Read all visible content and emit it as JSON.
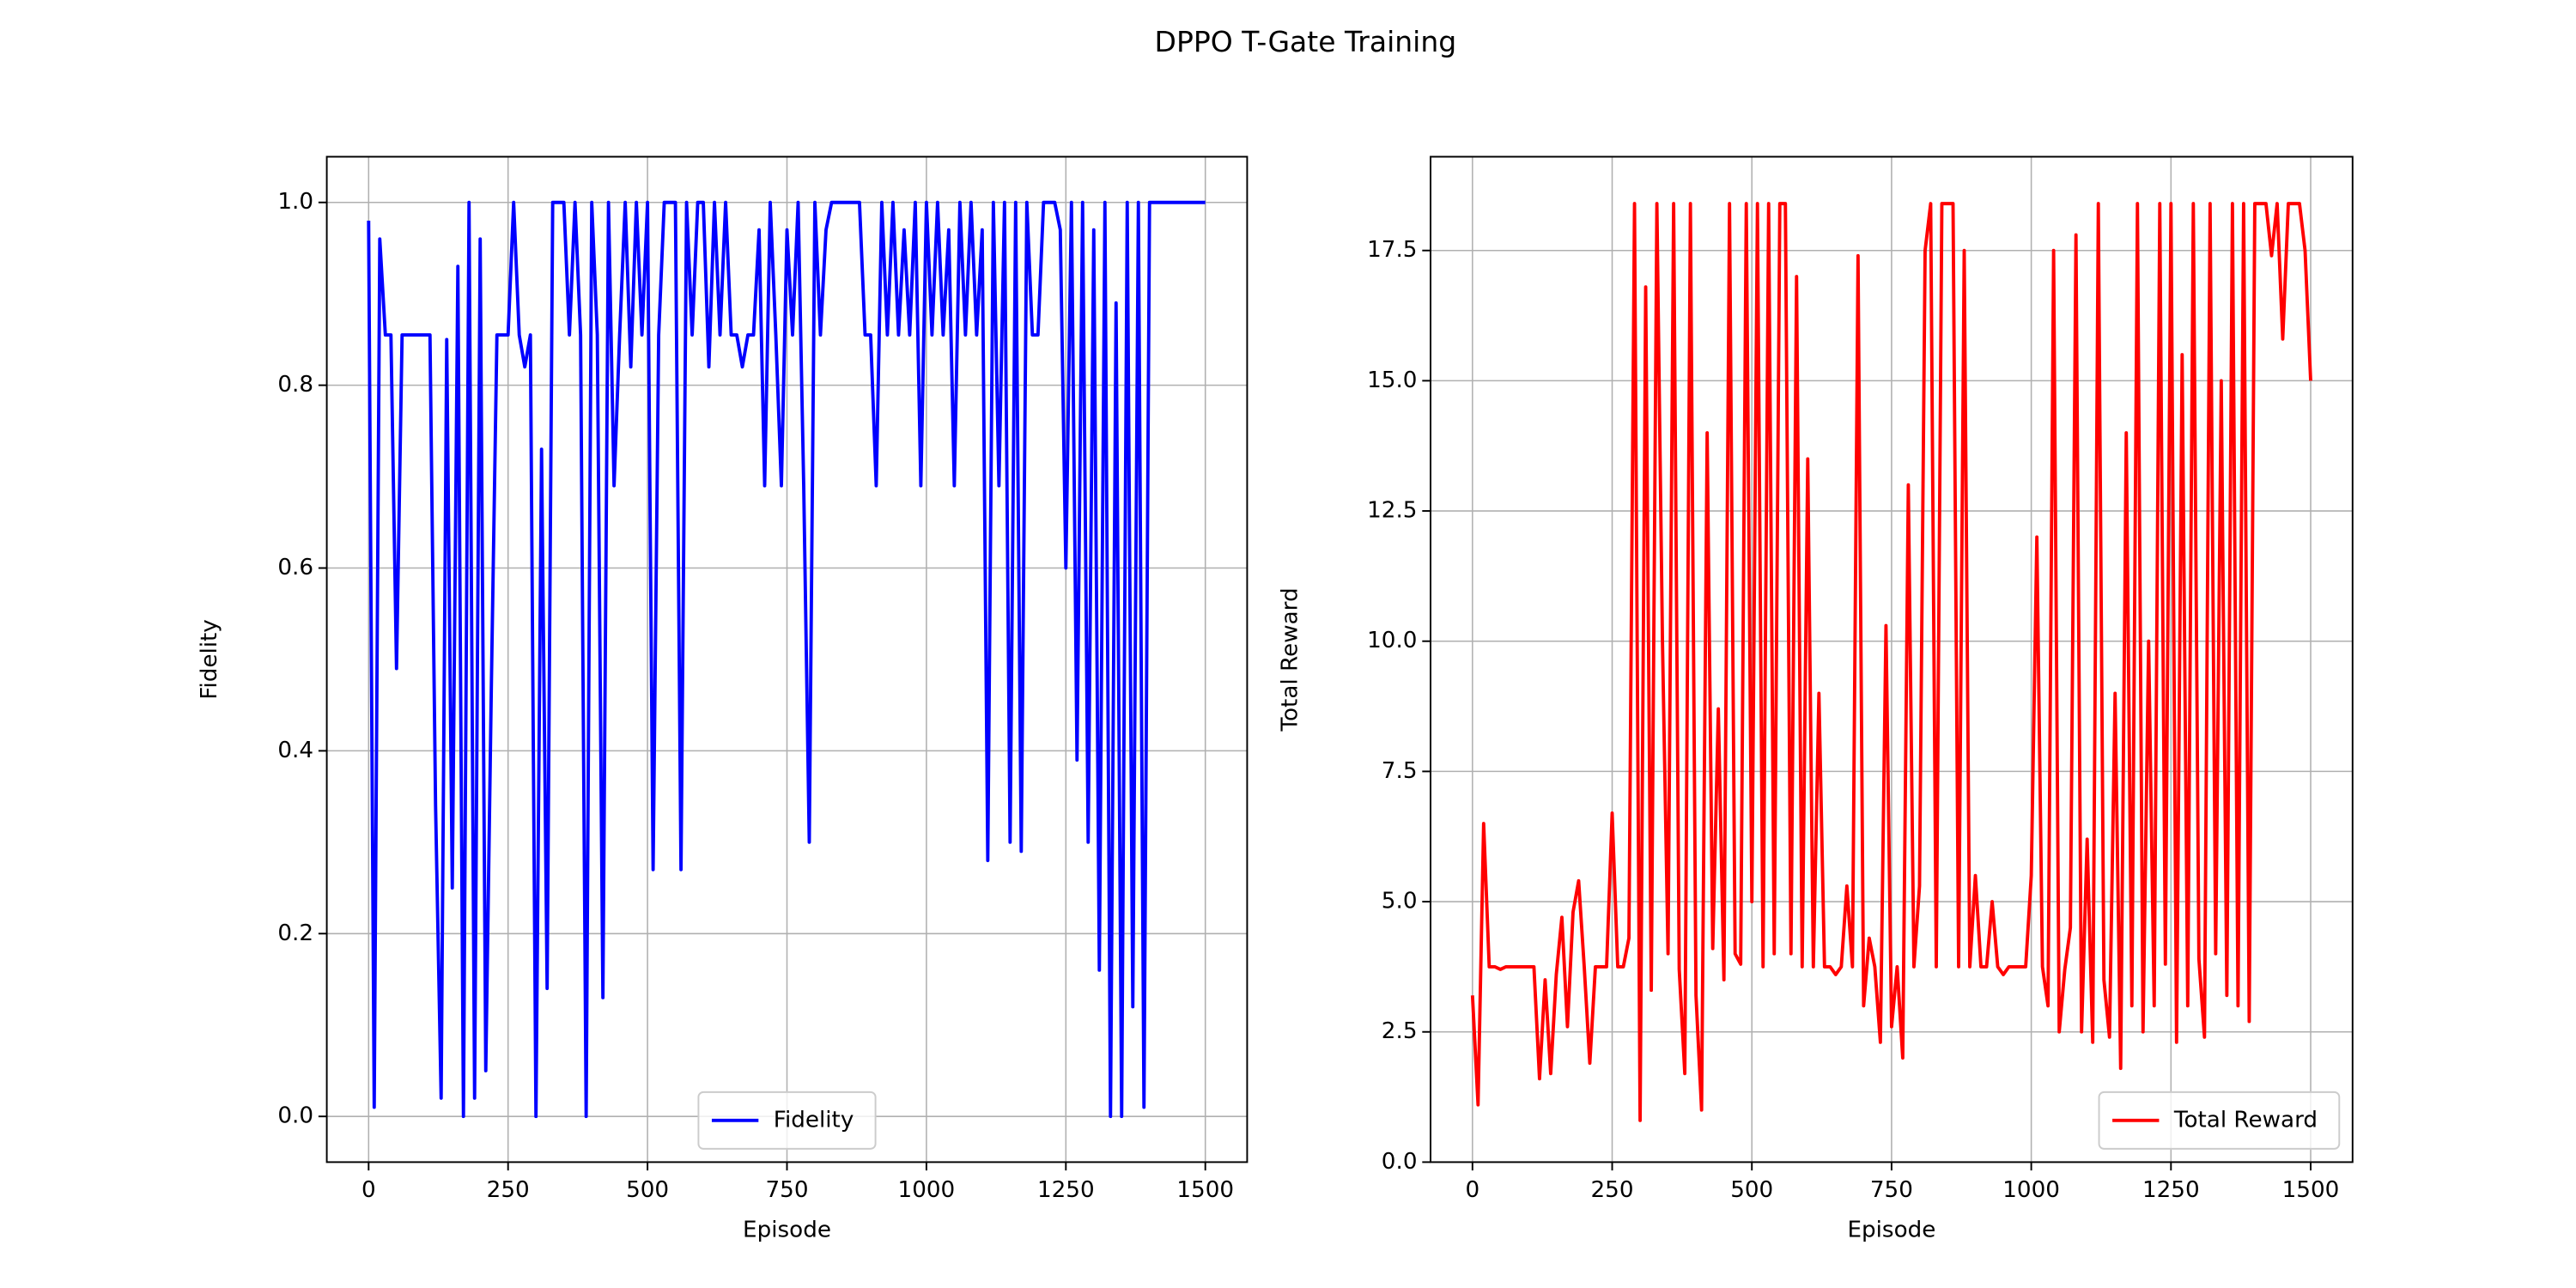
{
  "title": "DPPO T-Gate Training",
  "chart_data": [
    {
      "type": "line",
      "xlabel": "Episode",
      "ylabel": "Fidelity",
      "xlim": [
        -75,
        1575
      ],
      "ylim": [
        -0.05,
        1.05
      ],
      "xticks": [
        0,
        250,
        500,
        750,
        1000,
        1250,
        1500
      ],
      "yticks": [
        {
          "value": 0,
          "label": "0.0"
        },
        0.2,
        0.4,
        0.6,
        0.8,
        {
          "value": 1,
          "label": "1.0"
        }
      ],
      "grid": true,
      "legend": "lower center",
      "x": [
        0,
        10,
        20,
        30,
        40,
        50,
        60,
        70,
        80,
        90,
        100,
        110,
        120,
        130,
        140,
        150,
        160,
        170,
        180,
        190,
        200,
        210,
        220,
        230,
        240,
        250,
        260,
        270,
        280,
        290,
        300,
        310,
        320,
        330,
        340,
        350,
        360,
        370,
        380,
        390,
        400,
        410,
        420,
        430,
        440,
        450,
        460,
        470,
        480,
        490,
        500,
        510,
        520,
        530,
        540,
        550,
        560,
        570,
        580,
        590,
        600,
        610,
        620,
        630,
        640,
        650,
        660,
        670,
        680,
        690,
        700,
        710,
        720,
        730,
        740,
        750,
        760,
        770,
        780,
        790,
        800,
        810,
        820,
        830,
        840,
        850,
        860,
        870,
        880,
        890,
        900,
        910,
        920,
        930,
        940,
        950,
        960,
        970,
        980,
        990,
        1000,
        1010,
        1020,
        1030,
        1040,
        1050,
        1060,
        1070,
        1080,
        1090,
        1100,
        1110,
        1120,
        1130,
        1140,
        1150,
        1160,
        1170,
        1180,
        1190,
        1200,
        1210,
        1220,
        1230,
        1240,
        1250,
        1260,
        1270,
        1280,
        1290,
        1300,
        1310,
        1320,
        1330,
        1340,
        1350,
        1360,
        1370,
        1380,
        1390,
        1400,
        1410,
        1420,
        1430,
        1440,
        1450,
        1460,
        1470,
        1480,
        1490,
        1500
      ],
      "series": [
        {
          "name": "Fidelity",
          "color": "#0000ff",
          "values": [
            0.98,
            0.01,
            0.96,
            0.855,
            0.855,
            0.49,
            0.855,
            0.855,
            0.855,
            0.855,
            0.855,
            0.855,
            0.34,
            0.02,
            0.85,
            0.25,
            0.93,
            0.0,
            1.0,
            0.02,
            0.96,
            0.05,
            0.47,
            0.855,
            0.855,
            0.855,
            1.0,
            0.855,
            0.82,
            0.855,
            0.0,
            0.73,
            0.14,
            1.0,
            1.0,
            1.0,
            0.855,
            1.0,
            0.855,
            0.0,
            1.0,
            0.855,
            0.13,
            1.0,
            0.69,
            0.855,
            1.0,
            0.82,
            1.0,
            0.855,
            1.0,
            0.27,
            0.855,
            1.0,
            1.0,
            1.0,
            0.27,
            1.0,
            0.855,
            1.0,
            1.0,
            0.82,
            1.0,
            0.855,
            1.0,
            0.855,
            0.855,
            0.82,
            0.855,
            0.855,
            0.97,
            0.69,
            1.0,
            0.855,
            0.69,
            0.97,
            0.855,
            1.0,
            0.69,
            0.3,
            1.0,
            0.855,
            0.97,
            1.0,
            1.0,
            1.0,
            1.0,
            1.0,
            1.0,
            0.855,
            0.855,
            0.69,
            1.0,
            0.855,
            1.0,
            0.855,
            0.97,
            0.855,
            1.0,
            0.69,
            1.0,
            0.855,
            1.0,
            0.855,
            0.97,
            0.69,
            1.0,
            0.855,
            1.0,
            0.855,
            0.97,
            0.28,
            1.0,
            0.69,
            1.0,
            0.3,
            1.0,
            0.29,
            1.0,
            0.855,
            0.855,
            1.0,
            1.0,
            1.0,
            0.97,
            0.6,
            1.0,
            0.39,
            1.0,
            0.3,
            0.97,
            0.16,
            1.0,
            0.0,
            0.89,
            0.0,
            1.0,
            0.12,
            1.0,
            0.01,
            1.0,
            1.0,
            1.0,
            1.0,
            1.0,
            1.0,
            1.0,
            1.0,
            1.0,
            1.0,
            1.0
          ]
        }
      ]
    },
    {
      "type": "line",
      "xlabel": "Episode",
      "ylabel": "Total Reward",
      "xlim": [
        -75,
        1575
      ],
      "ylim": [
        0,
        19.3
      ],
      "xticks": [
        0,
        250,
        500,
        750,
        1000,
        1250,
        1500
      ],
      "yticks": [
        {
          "value": 0,
          "label": "0.0"
        },
        2.5,
        {
          "value": 5,
          "label": "5.0"
        },
        7.5,
        {
          "value": 10,
          "label": "10.0"
        },
        12.5,
        {
          "value": 15,
          "label": "15.0"
        },
        17.5
      ],
      "grid": true,
      "legend": "lower right",
      "x": [
        0,
        10,
        20,
        30,
        40,
        50,
        60,
        70,
        80,
        90,
        100,
        110,
        120,
        130,
        140,
        150,
        160,
        170,
        180,
        190,
        200,
        210,
        220,
        230,
        240,
        250,
        260,
        270,
        280,
        290,
        300,
        310,
        320,
        330,
        340,
        350,
        360,
        370,
        380,
        390,
        400,
        410,
        420,
        430,
        440,
        450,
        460,
        470,
        480,
        490,
        500,
        510,
        520,
        530,
        540,
        550,
        560,
        570,
        580,
        590,
        600,
        610,
        620,
        630,
        640,
        650,
        660,
        670,
        680,
        690,
        700,
        710,
        720,
        730,
        740,
        750,
        760,
        770,
        780,
        790,
        800,
        810,
        820,
        830,
        840,
        850,
        860,
        870,
        880,
        890,
        900,
        910,
        920,
        930,
        940,
        950,
        960,
        970,
        980,
        990,
        1000,
        1010,
        1020,
        1030,
        1040,
        1050,
        1060,
        1070,
        1080,
        1090,
        1100,
        1110,
        1120,
        1130,
        1140,
        1150,
        1160,
        1170,
        1180,
        1190,
        1200,
        1210,
        1220,
        1230,
        1240,
        1250,
        1260,
        1270,
        1280,
        1290,
        1300,
        1310,
        1320,
        1330,
        1340,
        1350,
        1360,
        1370,
        1380,
        1390,
        1400,
        1410,
        1420,
        1430,
        1440,
        1450,
        1460,
        1470,
        1480,
        1490,
        1500
      ],
      "series": [
        {
          "name": "Total Reward",
          "color": "#ff0000",
          "values": [
            3.2,
            1.1,
            6.5,
            3.75,
            3.75,
            3.7,
            3.75,
            3.75,
            3.75,
            3.75,
            3.75,
            3.75,
            1.6,
            3.5,
            1.7,
            3.6,
            4.7,
            2.6,
            4.8,
            5.4,
            3.75,
            1.9,
            3.75,
            3.75,
            3.75,
            6.7,
            3.75,
            3.75,
            4.3,
            18.4,
            0.8,
            16.8,
            3.3,
            18.4,
            10.0,
            4.0,
            18.4,
            3.7,
            1.7,
            18.4,
            3.2,
            1.0,
            14.0,
            4.1,
            8.7,
            3.5,
            18.4,
            4.0,
            3.8,
            18.4,
            5.0,
            18.4,
            3.75,
            18.4,
            4.0,
            18.4,
            18.4,
            4.0,
            17.0,
            3.75,
            13.5,
            3.75,
            9.0,
            3.75,
            3.75,
            3.6,
            3.75,
            5.3,
            3.75,
            17.4,
            3.0,
            4.3,
            3.75,
            2.3,
            10.3,
            2.6,
            3.75,
            2.0,
            13.0,
            3.75,
            5.3,
            17.5,
            18.4,
            3.75,
            18.4,
            18.4,
            18.4,
            3.75,
            17.5,
            3.75,
            5.5,
            3.75,
            3.75,
            5.0,
            3.75,
            3.6,
            3.75,
            3.75,
            3.75,
            3.75,
            5.5,
            12.0,
            3.75,
            3.0,
            17.5,
            2.5,
            3.7,
            4.5,
            17.8,
            2.5,
            6.2,
            2.3,
            18.4,
            3.5,
            2.4,
            9.0,
            1.8,
            14.0,
            3.0,
            18.4,
            2.5,
            10.0,
            3.0,
            18.4,
            3.8,
            18.4,
            2.3,
            15.5,
            3.0,
            18.4,
            3.9,
            2.4,
            18.4,
            4.0,
            15.0,
            3.2,
            18.4,
            3.0,
            18.4,
            2.7,
            18.4,
            18.4,
            18.4,
            17.4,
            18.4,
            15.8,
            18.4,
            18.4,
            18.4,
            17.5,
            15.0
          ]
        }
      ]
    }
  ]
}
